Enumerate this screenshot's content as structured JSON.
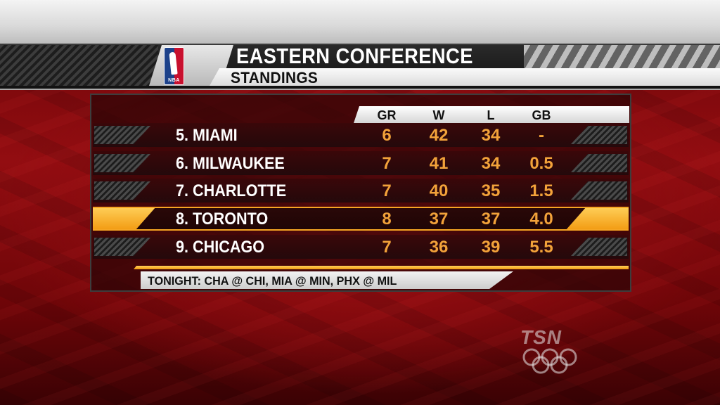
{
  "header": {
    "logo_text": "NBA",
    "title": "EASTERN CONFERENCE",
    "subtitle": "STANDINGS"
  },
  "columns": [
    "GR",
    "W",
    "L",
    "GB"
  ],
  "rows": [
    {
      "rank": "5.",
      "team": "MIAMI",
      "gr": "6",
      "w": "42",
      "l": "34",
      "gb": "-",
      "highlight": false
    },
    {
      "rank": "6.",
      "team": "MILWAUKEE",
      "gr": "7",
      "w": "41",
      "l": "34",
      "gb": "0.5",
      "highlight": false
    },
    {
      "rank": "7.",
      "team": "CHARLOTTE",
      "gr": "7",
      "w": "40",
      "l": "35",
      "gb": "1.5",
      "highlight": false
    },
    {
      "rank": "8.",
      "team": "TORONTO",
      "gr": "8",
      "w": "37",
      "l": "37",
      "gb": "4.0",
      "highlight": true
    },
    {
      "rank": "9.",
      "team": "CHICAGO",
      "gr": "7",
      "w": "36",
      "l": "39",
      "gb": "5.5",
      "highlight": false
    }
  ],
  "footer": {
    "tonight": "TONIGHT: CHA @ CHI, MIA @ MIN, PHX @ MIL"
  },
  "watermark": {
    "text": "TSN",
    "icon": "olympic-rings-icon"
  },
  "colors": {
    "accent": "#f29a10",
    "stat_text": "#f2a23a",
    "background": "#930d11"
  }
}
